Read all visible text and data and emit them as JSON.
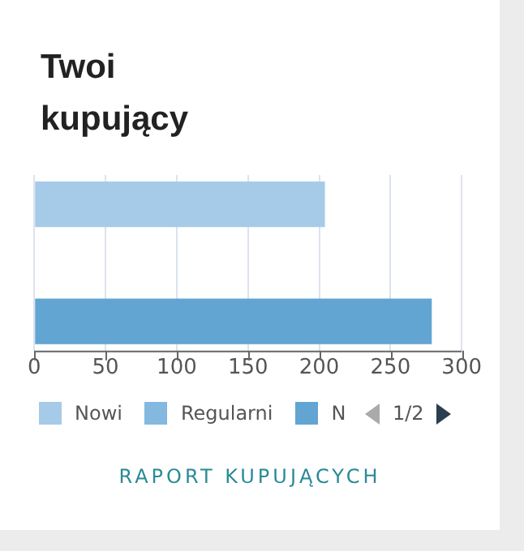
{
  "chart_data": {
    "type": "bar",
    "orientation": "horizontal",
    "title": "Twoi kupujący",
    "categories": [
      null
    ],
    "series": [
      {
        "name": "Nowi",
        "color": "#a6cbe8",
        "values": [
          204
        ]
      },
      {
        "name": "Regularni",
        "color": "#84b8df",
        "values": [
          0
        ]
      },
      {
        "name": "N",
        "color": "#62a5d2",
        "values": [
          279
        ]
      }
    ],
    "xlim": [
      0,
      300
    ],
    "xticks": [
      0,
      50,
      100,
      150,
      200,
      250,
      300
    ],
    "grid": "x",
    "legend": "bottom",
    "annotations": [
      "1/2",
      "RAPORT KUPUJĄCYCH"
    ]
  }
}
